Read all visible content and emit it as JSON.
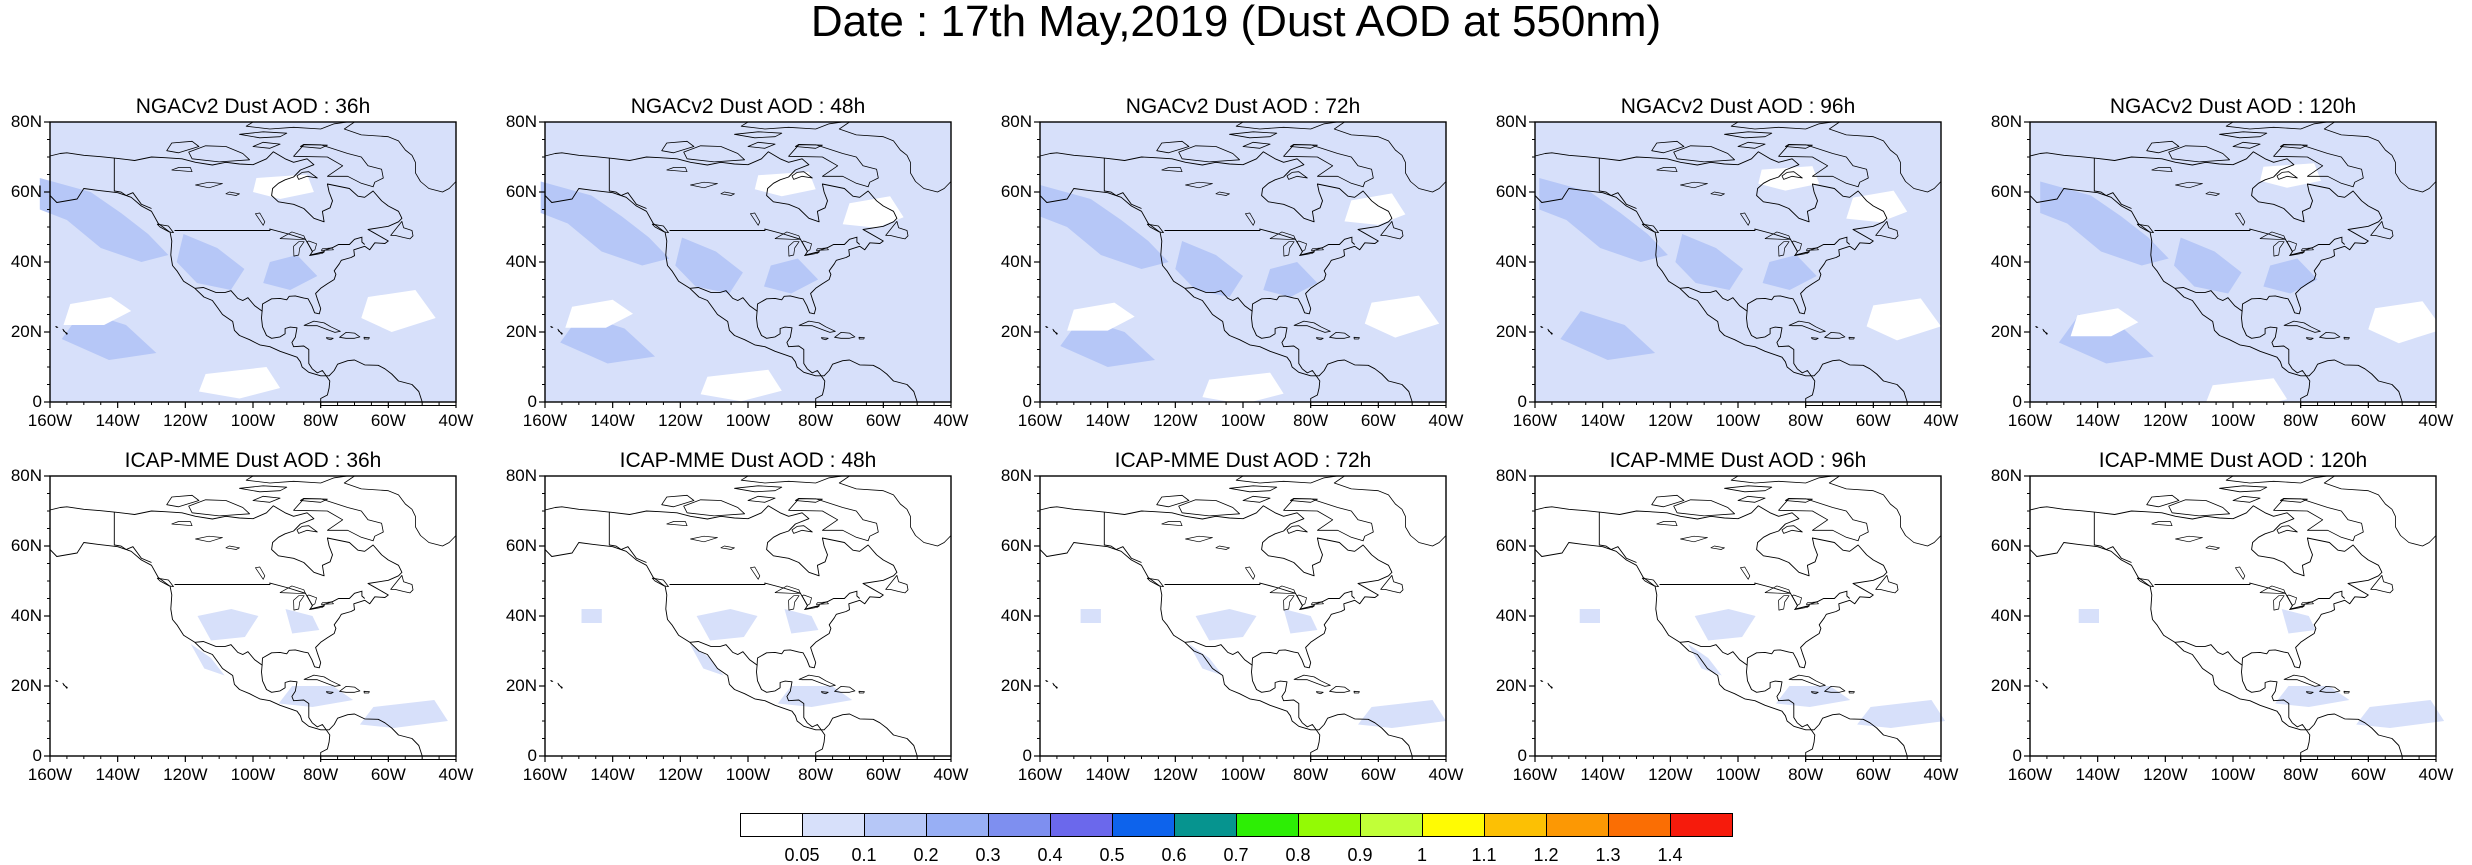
{
  "figure": {
    "title": "Date : 17th May,2019 (Dust AOD at 550nm)"
  },
  "axes": {
    "lat_labels": [
      "80N",
      "60N",
      "40N",
      "20N",
      "0"
    ],
    "lon_labels": [
      "160W",
      "140W",
      "120W",
      "100W",
      "80W",
      "60W",
      "40W"
    ],
    "lat_range": [
      0,
      80
    ],
    "lon_range": [
      -160,
      -40
    ]
  },
  "panels": [
    {
      "title": "NGACv2 Dust AOD : 36h",
      "model": "NGACv2",
      "lead": "36h",
      "coverage": "broad"
    },
    {
      "title": "NGACv2 Dust AOD : 48h",
      "model": "NGACv2",
      "lead": "48h",
      "coverage": "broad"
    },
    {
      "title": "NGACv2 Dust AOD : 72h",
      "model": "NGACv2",
      "lead": "72h",
      "coverage": "broad"
    },
    {
      "title": "NGACv2 Dust AOD : 96h",
      "model": "NGACv2",
      "lead": "96h",
      "coverage": "broad"
    },
    {
      "title": "NGACv2 Dust AOD : 120h",
      "model": "NGACv2",
      "lead": "120h",
      "coverage": "broad"
    },
    {
      "title": "ICAP-MME Dust AOD : 36h",
      "model": "ICAP-MME",
      "lead": "36h",
      "coverage": "sparse"
    },
    {
      "title": "ICAP-MME Dust AOD : 48h",
      "model": "ICAP-MME",
      "lead": "48h",
      "coverage": "sparse"
    },
    {
      "title": "ICAP-MME Dust AOD : 72h",
      "model": "ICAP-MME",
      "lead": "72h",
      "coverage": "sparse"
    },
    {
      "title": "ICAP-MME Dust AOD : 96h",
      "model": "ICAP-MME",
      "lead": "96h",
      "coverage": "sparse"
    },
    {
      "title": "ICAP-MME Dust AOD : 120h",
      "model": "ICAP-MME",
      "lead": "120h",
      "coverage": "sparse"
    }
  ],
  "colorbar": {
    "labels": [
      "0.05",
      "0.1",
      "0.2",
      "0.3",
      "0.4",
      "0.5",
      "0.6",
      "0.7",
      "0.8",
      "0.9",
      "1",
      "1.1",
      "1.2",
      "1.3",
      "1.4"
    ],
    "colors": [
      "#ffffff",
      "#d7e0fa",
      "#b6c7f7",
      "#98aff5",
      "#7e8ff0",
      "#6b68ec",
      "#0d63ec",
      "#06948f",
      "#2dee05",
      "#93fa05",
      "#c1ff38",
      "#fffb03",
      "#fcc004",
      "#fc9804",
      "#fa6e04",
      "#f61b0c"
    ]
  },
  "style": {
    "aod_light": "#d7e0fa",
    "aod_medium": "#b6c7f7",
    "coast": "#000000"
  }
}
